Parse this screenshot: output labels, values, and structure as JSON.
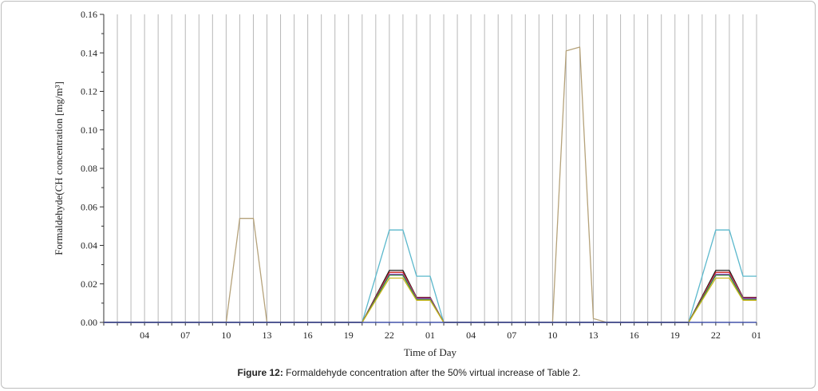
{
  "chart_data": {
    "type": "line",
    "title": "",
    "xlabel": "Time of Day",
    "ylabel": "Formaldehyde(CH concentration [mg/m³]",
    "ylim": [
      0,
      0.16
    ],
    "yticks": [
      "0.00",
      "0.02",
      "0.04",
      "0.06",
      "0.08",
      "0.10",
      "0.12",
      "0.14",
      "0.16"
    ],
    "x_hours": [
      1,
      49
    ],
    "xticks": [
      {
        "label": "04",
        "hour": 4
      },
      {
        "label": "07",
        "hour": 7
      },
      {
        "label": "10",
        "hour": 10
      },
      {
        "label": "13",
        "hour": 13
      },
      {
        "label": "16",
        "hour": 16
      },
      {
        "label": "19",
        "hour": 19
      },
      {
        "label": "22",
        "hour": 22
      },
      {
        "label": "01",
        "hour": 25
      },
      {
        "label": "04",
        "hour": 28
      },
      {
        "label": "07",
        "hour": 31
      },
      {
        "label": "10",
        "hour": 34
      },
      {
        "label": "13",
        "hour": 37
      },
      {
        "label": "16",
        "hour": 40
      },
      {
        "label": "19",
        "hour": 43
      },
      {
        "label": "22",
        "hour": 46
      },
      {
        "label": "01",
        "hour": 49
      }
    ],
    "grid": "vertical",
    "series": [
      {
        "color": "#b5a27a",
        "points": [
          [
            1,
            0
          ],
          [
            10,
            0
          ],
          [
            11,
            0.054
          ],
          [
            12,
            0.054
          ],
          [
            13,
            0
          ],
          [
            34,
            0
          ],
          [
            35,
            0.141
          ],
          [
            36,
            0.143
          ],
          [
            37,
            0.002
          ],
          [
            38,
            0
          ],
          [
            49,
            0
          ]
        ]
      },
      {
        "color": "#5bb8cc",
        "points": [
          [
            1,
            0
          ],
          [
            20,
            0
          ],
          [
            22,
            0.048
          ],
          [
            23,
            0.048
          ],
          [
            24,
            0.024
          ],
          [
            25,
            0.024
          ],
          [
            26,
            0
          ],
          [
            44,
            0
          ],
          [
            46,
            0.048
          ],
          [
            47,
            0.048
          ],
          [
            48,
            0.024
          ],
          [
            49,
            0.024
          ]
        ]
      },
      {
        "color": "#1a1a1a",
        "points": [
          [
            1,
            0
          ],
          [
            20,
            0
          ],
          [
            22,
            0.027
          ],
          [
            23,
            0.027
          ],
          [
            24,
            0.013
          ],
          [
            25,
            0.013
          ],
          [
            26,
            0
          ],
          [
            44,
            0
          ],
          [
            46,
            0.027
          ],
          [
            47,
            0.027
          ],
          [
            48,
            0.013
          ],
          [
            49,
            0.013
          ]
        ]
      },
      {
        "color": "#cc2a2a",
        "points": [
          [
            1,
            0
          ],
          [
            20,
            0
          ],
          [
            22,
            0.026
          ],
          [
            23,
            0.026
          ],
          [
            24,
            0.0128
          ],
          [
            25,
            0.0128
          ],
          [
            26,
            0
          ],
          [
            44,
            0
          ],
          [
            46,
            0.026
          ],
          [
            47,
            0.026
          ],
          [
            48,
            0.0128
          ],
          [
            49,
            0.0128
          ]
        ]
      },
      {
        "color": "#9a3fbf",
        "points": [
          [
            1,
            0
          ],
          [
            20,
            0
          ],
          [
            22,
            0.025
          ],
          [
            23,
            0.025
          ],
          [
            24,
            0.0125
          ],
          [
            25,
            0.0125
          ],
          [
            26,
            0
          ],
          [
            44,
            0
          ],
          [
            46,
            0.025
          ],
          [
            47,
            0.025
          ],
          [
            48,
            0.0125
          ],
          [
            49,
            0.0125
          ]
        ]
      },
      {
        "color": "#2f8a3a",
        "points": [
          [
            1,
            0
          ],
          [
            20,
            0
          ],
          [
            22,
            0.0245
          ],
          [
            23,
            0.0245
          ],
          [
            24,
            0.012
          ],
          [
            25,
            0.012
          ],
          [
            26,
            0
          ],
          [
            44,
            0
          ],
          [
            46,
            0.0245
          ],
          [
            47,
            0.0245
          ],
          [
            48,
            0.012
          ],
          [
            49,
            0.012
          ]
        ]
      },
      {
        "color": "#c8b51e",
        "points": [
          [
            1,
            0
          ],
          [
            20,
            0
          ],
          [
            22,
            0.023
          ],
          [
            23,
            0.023
          ],
          [
            24,
            0.0115
          ],
          [
            25,
            0.0115
          ],
          [
            26,
            0
          ],
          [
            44,
            0
          ],
          [
            46,
            0.023
          ],
          [
            47,
            0.023
          ],
          [
            48,
            0.0115
          ],
          [
            49,
            0.0115
          ]
        ]
      },
      {
        "color": "#2a3fb0",
        "points": [
          [
            1,
            0
          ],
          [
            49,
            0
          ]
        ]
      }
    ]
  },
  "caption": {
    "label": "Figure 12:",
    "text": " Formaldehyde concentration after the 50% virtual increase of Table 2."
  }
}
